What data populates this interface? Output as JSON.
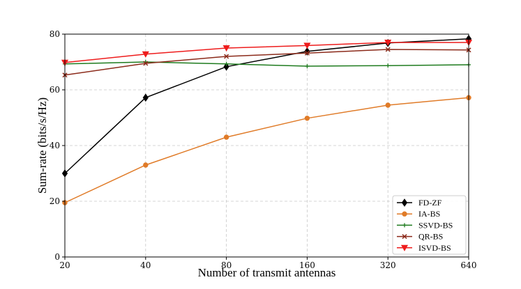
{
  "chart_data": {
    "type": "line",
    "title": "",
    "xlabel": "Number of transmit antennas",
    "ylabel": "Sum-rate (bits/s/Hz)",
    "categories": [
      "20",
      "40",
      "80",
      "160",
      "320",
      "640"
    ],
    "x_scale": "log2",
    "ylim": [
      0,
      80
    ],
    "yticks": [
      "0",
      "20",
      "40",
      "60",
      "80"
    ],
    "grid": true,
    "grid_style": "dashed",
    "legend_position": "bottom-right",
    "series": [
      {
        "name": "FD-ZF",
        "color": "#000000",
        "marker": "diamond",
        "values": [
          30,
          57.2,
          68.3,
          73.8,
          76.8,
          78.3
        ]
      },
      {
        "name": "IA-BS",
        "color": "#e07b28",
        "marker": "circle",
        "values": [
          19.5,
          33,
          43,
          49.8,
          54.5,
          57.2
        ]
      },
      {
        "name": "SSVD-BS",
        "color": "#1e7b1e",
        "marker": "plus",
        "values": [
          69.3,
          70,
          69.3,
          68.5,
          68.7,
          69
        ]
      },
      {
        "name": "QR-BS",
        "color": "#8b2a1a",
        "marker": "x",
        "values": [
          65.3,
          69.5,
          72,
          73.2,
          74.5,
          74.3
        ]
      },
      {
        "name": "ISVD-BS",
        "color": "#ee1c1c",
        "marker": "triangle-down",
        "values": [
          69.8,
          72.8,
          75,
          75.9,
          77,
          77
        ]
      }
    ]
  }
}
